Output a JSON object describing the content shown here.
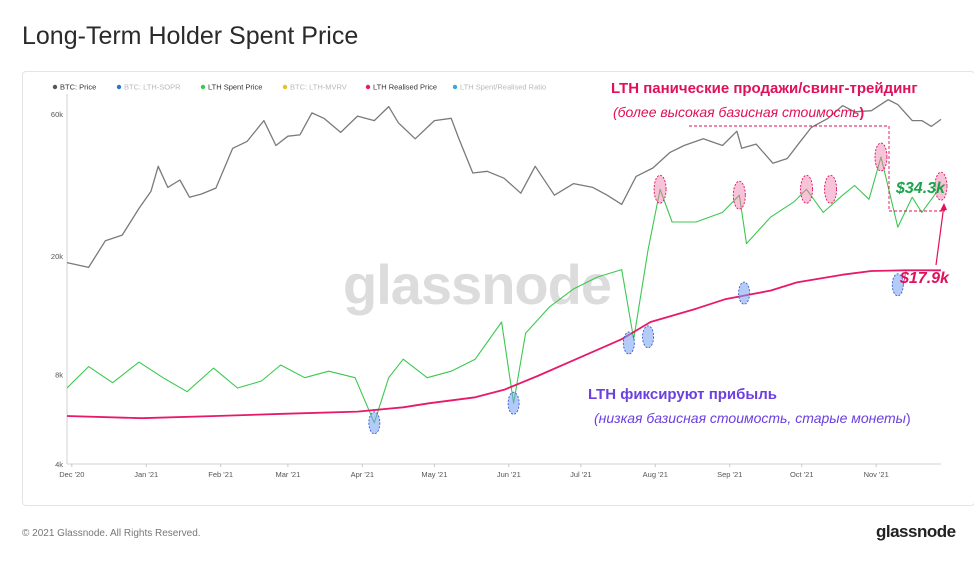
{
  "title": "Long-Term Holder Spent Price",
  "footer": {
    "copyright": "© 2021 Glassnode. All Rights Reserved.",
    "brand": "glassnode"
  },
  "watermark": "glassnode",
  "legend": [
    {
      "label": "BTC: Price",
      "color": "#555555",
      "active": true
    },
    {
      "label": "BTC: LTH-SOPR",
      "color": "#2f6fd6",
      "active": false
    },
    {
      "label": "LTH Spent Price",
      "color": "#3cc850",
      "active": true
    },
    {
      "label": "BTC: LTH-MVRV",
      "color": "#e8c020",
      "active": false
    },
    {
      "label": "LTH Realised Price",
      "color": "#e8186a",
      "active": true
    },
    {
      "label": "LTH Spent/Realised Ratio",
      "color": "#3aa8d8",
      "active": false
    }
  ],
  "annotations": {
    "top_bold": "LTH панические продажи/свинг-трейдинг",
    "top_italic": "(более высокая базисная стоимость",
    "top_italic_close": ")",
    "bottom_bold": "LTH фиксируют прибыль",
    "bottom_italic": "(низкая базисная стоимость, старые монеты",
    "bottom_italic_close": ")",
    "spent_value": "$34.3k",
    "realised_value": "$17.9k"
  },
  "chart_data": {
    "type": "line",
    "y_scale": "log",
    "ylim": [
      4000,
      70000
    ],
    "x_ticks": [
      "Dec '20",
      "Jan '21",
      "Feb '21",
      "Mar '21",
      "Apr '21",
      "May '21",
      "Jun '21",
      "Jul '21",
      "Aug '21",
      "Sep '21",
      "Oct '21",
      "Nov '21"
    ],
    "y_ticks": [
      {
        "label": "60k",
        "value": 60000
      },
      {
        "label": "20k",
        "value": 20000
      },
      {
        "label": "8k",
        "value": 8000
      },
      {
        "label": "4k",
        "value": 4000
      }
    ],
    "colors": {
      "price": "#7a7a7a",
      "spent": "#3cc850",
      "realised": "#e8186a"
    },
    "series": [
      {
        "name": "BTC: Price",
        "x": [
          "2020-12-01",
          "2020-12-10",
          "2020-12-17",
          "2020-12-24",
          "2020-12-31",
          "2021-01-05",
          "2021-01-08",
          "2021-01-12",
          "2021-01-17",
          "2021-01-21",
          "2021-01-26",
          "2021-02-01",
          "2021-02-08",
          "2021-02-14",
          "2021-02-21",
          "2021-02-26",
          "2021-03-03",
          "2021-03-08",
          "2021-03-13",
          "2021-03-18",
          "2021-03-25",
          "2021-04-01",
          "2021-04-08",
          "2021-04-14",
          "2021-04-18",
          "2021-04-25",
          "2021-05-03",
          "2021-05-10",
          "2021-05-13",
          "2021-05-19",
          "2021-05-25",
          "2021-06-01",
          "2021-06-08",
          "2021-06-14",
          "2021-06-22",
          "2021-06-30",
          "2021-07-08",
          "2021-07-14",
          "2021-07-20",
          "2021-07-26",
          "2021-08-02",
          "2021-08-09",
          "2021-08-15",
          "2021-08-23",
          "2021-08-31",
          "2021-09-06",
          "2021-09-08",
          "2021-09-14",
          "2021-09-21",
          "2021-09-27",
          "2021-10-02",
          "2021-10-07",
          "2021-10-14",
          "2021-10-20",
          "2021-10-25",
          "2021-11-01",
          "2021-11-08",
          "2021-11-12",
          "2021-11-18",
          "2021-11-22",
          "2021-11-26",
          "2021-11-30"
        ],
        "y": [
          19000,
          18300,
          22500,
          23500,
          28900,
          33000,
          40000,
          34000,
          36000,
          31500,
          32300,
          33800,
          46000,
          48500,
          57000,
          47000,
          50500,
          51000,
          60500,
          58000,
          52000,
          59000,
          57000,
          63500,
          56000,
          49500,
          57000,
          58000,
          50000,
          38000,
          38500,
          36500,
          32500,
          40000,
          32000,
          35000,
          34000,
          32000,
          29800,
          37000,
          39500,
          44500,
          47000,
          49500,
          47000,
          52500,
          46000,
          47500,
          41000,
          42500,
          48000,
          54000,
          58000,
          64000,
          61000,
          61500,
          67000,
          64500,
          57000,
          57000,
          54500,
          57500
        ]
      },
      {
        "name": "LTH Spent Price",
        "x": [
          "2020-12-01",
          "2020-12-10",
          "2020-12-20",
          "2020-12-31",
          "2021-01-10",
          "2021-01-20",
          "2021-01-31",
          "2021-02-10",
          "2021-02-20",
          "2021-02-28",
          "2021-03-10",
          "2021-03-20",
          "2021-03-31",
          "2021-04-08",
          "2021-04-14",
          "2021-04-20",
          "2021-04-30",
          "2021-05-10",
          "2021-05-20",
          "2021-05-31",
          "2021-06-05",
          "2021-06-10",
          "2021-06-20",
          "2021-06-30",
          "2021-07-10",
          "2021-07-20",
          "2021-07-25",
          "2021-07-31",
          "2021-08-05",
          "2021-08-10",
          "2021-08-20",
          "2021-08-31",
          "2021-09-07",
          "2021-09-10",
          "2021-09-20",
          "2021-09-30",
          "2021-10-05",
          "2021-10-12",
          "2021-10-20",
          "2021-10-25",
          "2021-10-31",
          "2021-11-05",
          "2021-11-12",
          "2021-11-18",
          "2021-11-22",
          "2021-11-30"
        ],
        "y": [
          7200,
          8500,
          7500,
          8800,
          7800,
          7000,
          8400,
          7200,
          7600,
          8600,
          7800,
          8200,
          7800,
          5500,
          7800,
          9000,
          7800,
          8200,
          9000,
          12000,
          6400,
          11000,
          13500,
          15500,
          17000,
          18000,
          10500,
          21000,
          33500,
          26000,
          26000,
          28000,
          32000,
          22000,
          27000,
          30500,
          33500,
          28000,
          32000,
          34500,
          31000,
          43000,
          25000,
          31500,
          28000,
          34300
        ]
      },
      {
        "name": "LTH Realised Price",
        "x": [
          "2020-12-01",
          "2021-01-01",
          "2021-02-01",
          "2021-03-01",
          "2021-04-01",
          "2021-04-20",
          "2021-05-01",
          "2021-05-20",
          "2021-06-01",
          "2021-06-15",
          "2021-07-01",
          "2021-07-20",
          "2021-08-01",
          "2021-08-20",
          "2021-09-01",
          "2021-09-20",
          "2021-10-01",
          "2021-10-20",
          "2021-11-01",
          "2021-11-15",
          "2021-11-30"
        ],
        "y": [
          5800,
          5700,
          5800,
          5900,
          6000,
          6200,
          6400,
          6700,
          7100,
          7900,
          9000,
          10500,
          12000,
          13300,
          14300,
          15300,
          16300,
          17300,
          17800,
          17900,
          17900
        ]
      }
    ],
    "highlights": [
      {
        "group": "high",
        "x": "2021-08-05",
        "y": 33500
      },
      {
        "group": "high",
        "x": "2021-09-07",
        "y": 32000
      },
      {
        "group": "high",
        "x": "2021-10-05",
        "y": 33500
      },
      {
        "group": "high",
        "x": "2021-10-15",
        "y": 33500
      },
      {
        "group": "high",
        "x": "2021-11-05",
        "y": 43000
      },
      {
        "group": "high",
        "x": "2021-11-30",
        "y": 34300
      },
      {
        "group": "low",
        "x": "2021-04-08",
        "y": 5500
      },
      {
        "group": "low",
        "x": "2021-06-05",
        "y": 6400
      },
      {
        "group": "low",
        "x": "2021-07-23",
        "y": 10200
      },
      {
        "group": "low",
        "x": "2021-07-31",
        "y": 10700
      },
      {
        "group": "low",
        "x": "2021-09-09",
        "y": 15000
      },
      {
        "group": "low",
        "x": "2021-11-12",
        "y": 16000
      }
    ]
  }
}
